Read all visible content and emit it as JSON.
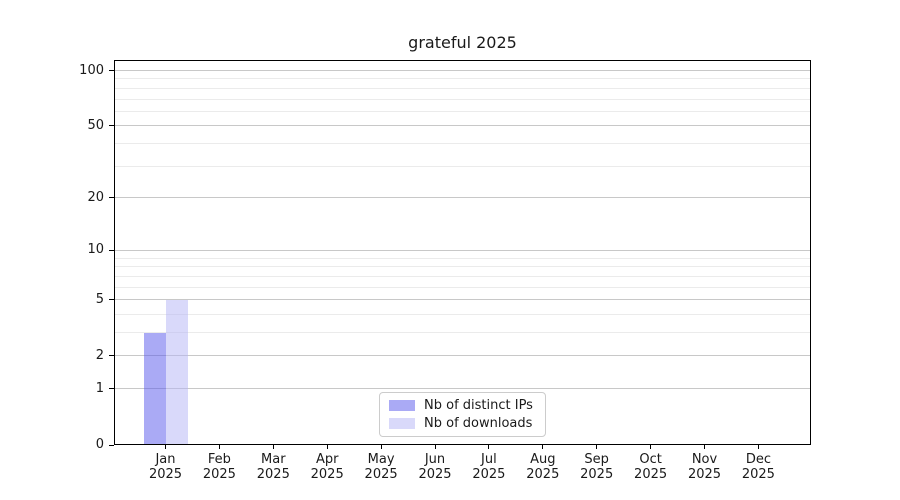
{
  "figure": {
    "background": "#ffffff"
  },
  "chart_data": {
    "type": "bar",
    "title": "grateful 2025",
    "categories": [
      "Jan 2025",
      "Feb 2025",
      "Mar 2025",
      "Apr 2025",
      "May 2025",
      "Jun 2025",
      "Jul 2025",
      "Aug 2025",
      "Sep 2025",
      "Oct 2025",
      "Nov 2025",
      "Dec 2025"
    ],
    "series": [
      {
        "name": "Nb of distinct IPs",
        "color": "rgba(85,85,235,0.5)",
        "values": [
          3,
          0,
          0,
          0,
          0,
          0,
          0,
          0,
          0,
          0,
          0,
          0
        ]
      },
      {
        "name": "Nb of downloads",
        "color": "rgba(179,179,245,0.5)",
        "values": [
          5,
          0,
          0,
          0,
          0,
          0,
          0,
          0,
          0,
          0,
          0,
          0
        ]
      }
    ],
    "xlabel": "",
    "ylabel": "",
    "yscale": "log1p",
    "ylim": [
      0,
      114
    ],
    "y_major_ticks": [
      0,
      1,
      2,
      5,
      10,
      20,
      50,
      100
    ],
    "y_minor_ticks": [
      3,
      4,
      6,
      7,
      8,
      9,
      30,
      40,
      60,
      70,
      80,
      90
    ],
    "grid": true,
    "legend_position": "lower center",
    "colors": {
      "grid_major": "#c8c8c8",
      "grid_minor": "#ebebeb",
      "axis": "#000000",
      "text": "#1a1a1a",
      "legend_border": "#cccccc"
    }
  }
}
